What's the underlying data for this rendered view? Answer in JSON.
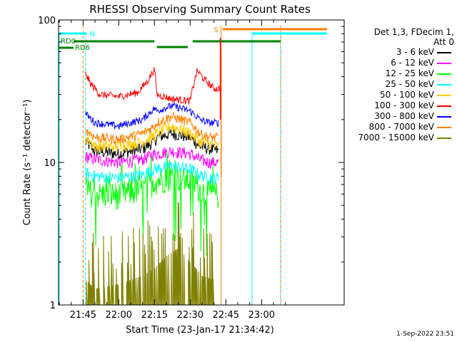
{
  "chart_data": {
    "type": "line",
    "title": "RHESSI Observing Summary Count Rates",
    "xlabel": "Start Time (23-Jan-17 21:34:42)",
    "ylabel": "Count Rate (s⁻¹ detector⁻¹)",
    "yscale": "log",
    "ylim": [
      1,
      100
    ],
    "xlim_minutes": [
      0,
      120
    ],
    "x_ticks": [
      "21:45",
      "22:00",
      "22:15",
      "22:30",
      "22:45",
      "23:00"
    ],
    "y_ticks": [
      "1",
      "10",
      "100"
    ],
    "legend_header": [
      "Det 1,3, FDecim 1,",
      "Att 0"
    ],
    "legend_placement": "right",
    "series": [
      {
        "name": "3 - 6 keV",
        "color": "#000000",
        "x": [
          "21:46",
          "21:50",
          "22:00",
          "22:10",
          "22:15",
          "22:16",
          "22:22",
          "22:30",
          "22:34",
          "22:38",
          "22:42"
        ],
        "y": [
          14,
          12,
          11.5,
          12.5,
          14,
          15,
          16,
          15,
          13,
          12.5,
          12
        ]
      },
      {
        "name": "6 - 12 keV",
        "color": "#ff00ff",
        "x": [
          "21:46",
          "21:50",
          "22:00",
          "22:10",
          "22:15",
          "22:16",
          "22:22",
          "22:30",
          "22:34",
          "22:38",
          "22:42"
        ],
        "y": [
          11,
          10.5,
          10,
          10.5,
          11.5,
          11.5,
          12,
          11.5,
          10.5,
          10,
          10
        ]
      },
      {
        "name": "12 - 25 keV",
        "color": "#00ff00",
        "x": [
          "21:46",
          "21:50",
          "22:00",
          "22:10",
          "22:15",
          "22:16",
          "22:22",
          "22:30",
          "22:34",
          "22:38",
          "22:42"
        ],
        "y": [
          6.5,
          6,
          6,
          6.5,
          7.5,
          7.5,
          8,
          7.5,
          6.5,
          6,
          6
        ]
      },
      {
        "name": "25 - 50 keV",
        "color": "#00ffff",
        "x": [
          "21:46",
          "21:50",
          "22:00",
          "22:10",
          "22:15",
          "22:16",
          "22:22",
          "22:30",
          "22:34",
          "22:38",
          "22:42"
        ],
        "y": [
          8.5,
          8,
          7.8,
          8.2,
          9,
          9,
          9.5,
          9,
          8.2,
          7.8,
          7.8
        ]
      },
      {
        "name": "50 - 100 keV",
        "color": "#ffcc00",
        "x": [
          "21:46",
          "21:50",
          "22:00",
          "22:10",
          "22:15",
          "22:16",
          "22:22",
          "22:30",
          "22:34",
          "22:38",
          "22:42"
        ],
        "y": [
          15,
          13,
          13,
          14,
          15.5,
          16,
          18,
          16,
          14,
          13.5,
          13
        ]
      },
      {
        "name": "100 - 300 keV",
        "color": "#ff0000",
        "x": [
          "21:46",
          "21:48",
          "21:52",
          "22:00",
          "22:08",
          "22:12",
          "22:15",
          "22:16",
          "22:22",
          "22:30",
          "22:33",
          "22:36",
          "22:40",
          "22:43"
        ],
        "y": [
          42,
          36,
          30,
          29,
          31,
          37,
          45,
          30,
          28,
          27,
          44,
          38,
          33,
          33
        ]
      },
      {
        "name": "300 - 800 keV",
        "color": "#0000ff",
        "x": [
          "21:46",
          "21:50",
          "22:00",
          "22:10",
          "22:15",
          "22:16",
          "22:22",
          "22:30",
          "22:34",
          "22:38",
          "22:42"
        ],
        "y": [
          22,
          19,
          18,
          20,
          24,
          23,
          25,
          23,
          20,
          19,
          19
        ]
      },
      {
        "name": "800 - 7000 keV",
        "color": "#ff8000",
        "x": [
          "21:46",
          "21:50",
          "22:00",
          "22:10",
          "22:15",
          "22:16",
          "22:22",
          "22:30",
          "22:34",
          "22:38",
          "22:42"
        ],
        "y": [
          17,
          15,
          14.5,
          16,
          18,
          19,
          21,
          19,
          16,
          15,
          15
        ]
      },
      {
        "name": "7000 - 15000 keV",
        "color": "#808000",
        "x": [
          "21:46",
          "21:50",
          "22:00",
          "22:10",
          "22:15",
          "22:20",
          "22:25",
          "22:30",
          "22:35",
          "22:40"
        ],
        "y": [
          1.5,
          1.3,
          1.4,
          1.6,
          1.8,
          2.2,
          2.5,
          2.0,
          1.6,
          1.5
        ]
      }
    ],
    "annotations": [
      {
        "label": "N",
        "color": "#00ffff"
      },
      {
        "label": "S",
        "color": "#ff8000"
      },
      {
        "label": "RD0",
        "color": "#008000"
      },
      {
        "label": "RD6",
        "color": "#008000"
      }
    ]
  },
  "footer": "1-Sep-2022 23:51"
}
